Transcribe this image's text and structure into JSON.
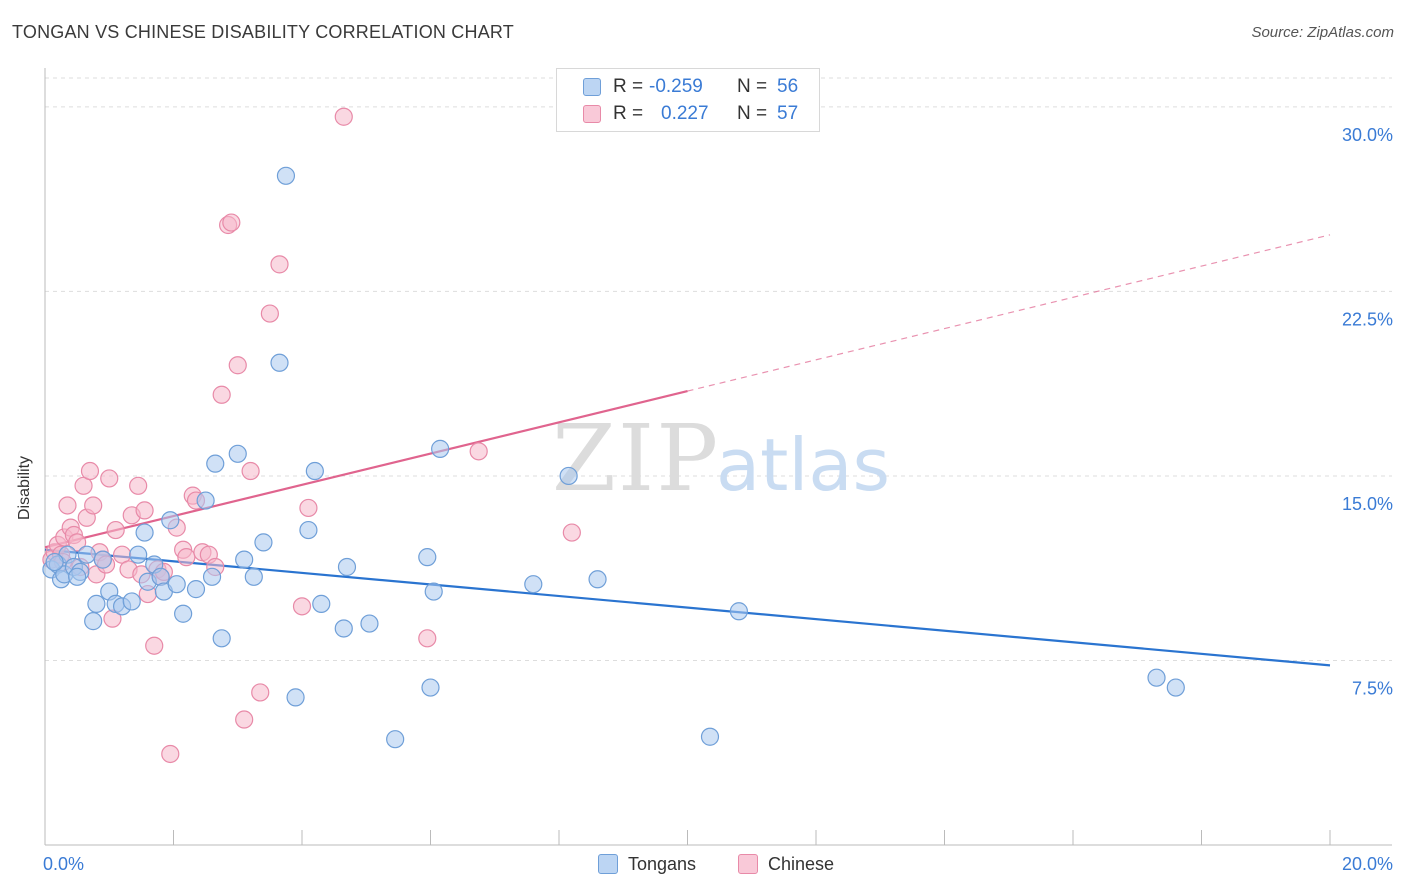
{
  "title": "TONGAN VS CHINESE DISABILITY CORRELATION CHART",
  "source": "Source: ZipAtlas.com",
  "watermark": {
    "zip": "ZIP",
    "atlas": "atlas"
  },
  "legend": {
    "series": [
      {
        "label": "R =",
        "r_value": "-0.259",
        "n_label": "N =",
        "n_value": "56"
      },
      {
        "label": "R =",
        "r_value": "0.227",
        "n_label": "N =",
        "n_value": "57"
      }
    ]
  },
  "bottom_legend": [
    "Tongans",
    "Chinese"
  ],
  "colors": {
    "tongans_fill": "#a9c8ee",
    "tongans_stroke": "#6f9fd8",
    "tongans_line": "#2a74d0",
    "chinese_fill": "#f6b8cb",
    "chinese_stroke": "#e88aa8",
    "chinese_line": "#e0648e",
    "value_text": "#3a7bd5"
  },
  "chart_data": {
    "type": "scatter",
    "title": "TONGAN VS CHINESE DISABILITY CORRELATION CHART",
    "xlabel": "",
    "ylabel": "Disability",
    "xlim": [
      0,
      20
    ],
    "ylim": [
      0,
      31.5
    ],
    "x_tick_labels": [
      "0.0%",
      "20.0%"
    ],
    "y_ticks": [
      7.5,
      15.0,
      22.5,
      30.0
    ],
    "y_tick_labels": [
      "7.5%",
      "15.0%",
      "22.5%",
      "30.0%"
    ],
    "grid": true,
    "series": [
      {
        "name": "Tongans",
        "r": -0.259,
        "n": 56,
        "trend": {
          "x0": 0,
          "y0": 12.0,
          "x1": 20,
          "y1": 7.3,
          "solid_until": 20
        },
        "points": [
          [
            0.1,
            11.2
          ],
          [
            0.2,
            11.4
          ],
          [
            0.25,
            10.8
          ],
          [
            0.3,
            11.0
          ],
          [
            0.35,
            11.8
          ],
          [
            0.45,
            11.3
          ],
          [
            0.55,
            11.1
          ],
          [
            0.65,
            11.8
          ],
          [
            0.75,
            9.1
          ],
          [
            0.8,
            9.8
          ],
          [
            0.9,
            11.6
          ],
          [
            1.0,
            10.3
          ],
          [
            1.1,
            9.8
          ],
          [
            1.2,
            9.7
          ],
          [
            1.35,
            9.9
          ],
          [
            1.45,
            11.8
          ],
          [
            1.55,
            12.7
          ],
          [
            1.6,
            10.7
          ],
          [
            1.7,
            11.4
          ],
          [
            1.8,
            10.9
          ],
          [
            1.85,
            10.3
          ],
          [
            1.95,
            13.2
          ],
          [
            2.05,
            10.6
          ],
          [
            2.15,
            9.4
          ],
          [
            2.35,
            10.4
          ],
          [
            2.5,
            14.0
          ],
          [
            2.6,
            10.9
          ],
          [
            2.65,
            15.5
          ],
          [
            2.75,
            8.4
          ],
          [
            3.0,
            15.9
          ],
          [
            3.1,
            11.6
          ],
          [
            3.25,
            10.9
          ],
          [
            3.4,
            12.3
          ],
          [
            3.65,
            19.6
          ],
          [
            3.75,
            27.2
          ],
          [
            3.9,
            6.0
          ],
          [
            4.1,
            12.8
          ],
          [
            4.2,
            15.2
          ],
          [
            4.3,
            9.8
          ],
          [
            4.65,
            8.8
          ],
          [
            4.7,
            11.3
          ],
          [
            5.05,
            9.0
          ],
          [
            5.45,
            4.3
          ],
          [
            5.95,
            11.7
          ],
          [
            6.0,
            6.4
          ],
          [
            6.05,
            10.3
          ],
          [
            6.15,
            16.1
          ],
          [
            7.6,
            10.6
          ],
          [
            8.15,
            15.0
          ],
          [
            8.6,
            10.8
          ],
          [
            10.35,
            4.4
          ],
          [
            10.8,
            9.5
          ],
          [
            17.3,
            6.8
          ],
          [
            17.6,
            6.4
          ],
          [
            0.15,
            11.5
          ],
          [
            0.5,
            10.9
          ]
        ]
      },
      {
        "name": "Chinese",
        "r": 0.227,
        "n": 57,
        "trend": {
          "x0": 0,
          "y0": 12.1,
          "x1": 20,
          "y1": 24.8,
          "solid_until": 10
        },
        "points": [
          [
            0.1,
            11.6
          ],
          [
            0.15,
            11.9
          ],
          [
            0.2,
            12.2
          ],
          [
            0.25,
            11.8
          ],
          [
            0.3,
            12.5
          ],
          [
            0.35,
            13.8
          ],
          [
            0.4,
            12.9
          ],
          [
            0.45,
            12.6
          ],
          [
            0.5,
            12.3
          ],
          [
            0.55,
            11.3
          ],
          [
            0.6,
            14.6
          ],
          [
            0.65,
            13.3
          ],
          [
            0.7,
            15.2
          ],
          [
            0.75,
            13.8
          ],
          [
            0.8,
            11.0
          ],
          [
            0.85,
            11.9
          ],
          [
            0.9,
            11.6
          ],
          [
            0.95,
            11.4
          ],
          [
            1.0,
            14.9
          ],
          [
            1.05,
            9.2
          ],
          [
            1.1,
            12.8
          ],
          [
            1.2,
            11.8
          ],
          [
            1.3,
            11.2
          ],
          [
            1.35,
            13.4
          ],
          [
            1.45,
            14.6
          ],
          [
            1.5,
            11.0
          ],
          [
            1.55,
            13.6
          ],
          [
            1.6,
            10.2
          ],
          [
            1.7,
            8.1
          ],
          [
            1.75,
            11.2
          ],
          [
            1.8,
            10.9
          ],
          [
            1.85,
            11.1
          ],
          [
            1.95,
            3.7
          ],
          [
            2.05,
            12.9
          ],
          [
            2.15,
            12.0
          ],
          [
            2.2,
            11.7
          ],
          [
            2.3,
            14.2
          ],
          [
            2.35,
            14.0
          ],
          [
            2.45,
            11.9
          ],
          [
            2.55,
            11.8
          ],
          [
            2.65,
            11.3
          ],
          [
            2.75,
            18.3
          ],
          [
            2.85,
            25.2
          ],
          [
            2.9,
            25.3
          ],
          [
            3.0,
            19.5
          ],
          [
            3.1,
            5.1
          ],
          [
            3.2,
            15.2
          ],
          [
            3.35,
            6.2
          ],
          [
            3.5,
            21.6
          ],
          [
            3.65,
            23.6
          ],
          [
            4.0,
            9.7
          ],
          [
            4.1,
            13.7
          ],
          [
            4.65,
            29.6
          ],
          [
            5.95,
            8.4
          ],
          [
            6.75,
            16.0
          ],
          [
            8.2,
            12.7
          ],
          [
            0.28,
            11.5
          ]
        ]
      }
    ]
  }
}
